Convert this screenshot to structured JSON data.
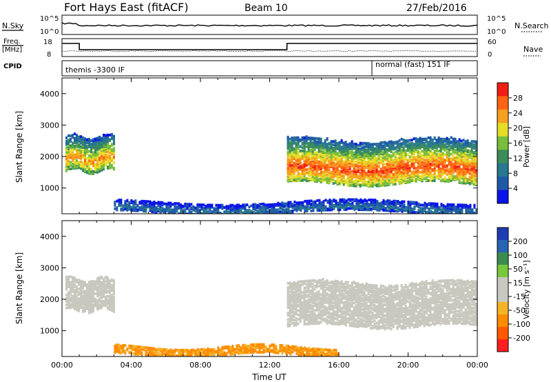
{
  "header": {
    "title": "Fort Hays East (fitACF)",
    "beam": "Beam 10",
    "date": "27/Feb/2016"
  },
  "top_panels": {
    "nsky_label": "N.Sky",
    "nsky_ticks": [
      "10^5",
      "10^0"
    ],
    "nsearch_label": "N.Search",
    "nsearch_ticks": [
      "10^5",
      "10^0"
    ],
    "freq_label_1": "Freq.",
    "freq_label_2": "[MHz]",
    "freq_ticks": [
      "18",
      "8"
    ],
    "nave_label": "Nave",
    "nave_ticks": [
      "60",
      "0"
    ],
    "cpid_label": "CPID",
    "cpid_left": "themis -3300 IF",
    "cpid_right": "normal (fast) 151 IF"
  },
  "colors": {
    "power_scale": [
      "#0a14e8",
      "#1e5aa8",
      "#287890",
      "#3c8c5a",
      "#78be3c",
      "#e6dc28",
      "#f5a01e",
      "#ff6414",
      "#f01e14"
    ],
    "velocity_scale": [
      "#ff1e1e",
      "#ff5a00",
      "#ff8c00",
      "#f5b428",
      "#c8c8be",
      "#c8c8be",
      "#78c83c",
      "#3c8c50",
      "#2864b4",
      "#1e3cb4"
    ],
    "ground_scatter": "#c8c8be"
  },
  "chart_data": [
    {
      "type": "heatmap",
      "panel": "power",
      "ylabel": "Slant Range [km]",
      "xlabel": "Time UT",
      "x_ticks": [
        "00:00",
        "04:00",
        "08:00",
        "12:00",
        "16:00",
        "20:00",
        "00:00"
      ],
      "x_range_hours": [
        0,
        24
      ],
      "y_range_km": [
        180,
        4500
      ],
      "y_ticks": [
        1000,
        2000,
        3000,
        4000
      ],
      "colorbar_label": "Power [dB]",
      "colorbar_ticks": [
        4,
        8,
        12,
        16,
        20,
        24,
        28
      ],
      "colorbar_range": [
        0,
        32
      ],
      "features": [
        {
          "name": "early echo band",
          "t_start": 0.2,
          "t_end": 3.0,
          "range_km": [
            1500,
            2600
          ],
          "peak_db": 24
        },
        {
          "name": "main echo band",
          "t_start": 13.0,
          "t_end": 24.0,
          "range_km": [
            1100,
            2500
          ],
          "peak_db": 28
        },
        {
          "name": "near-range clutter",
          "t_start": 3.0,
          "t_end": 24.0,
          "range_km": [
            180,
            500
          ],
          "peak_db": 8
        }
      ]
    },
    {
      "type": "heatmap",
      "panel": "velocity",
      "ylabel": "Slant Range [km]",
      "xlabel": "Time UT",
      "x_ticks": [
        "00:00",
        "04:00",
        "08:00",
        "12:00",
        "16:00",
        "20:00",
        "00:00"
      ],
      "x_range_hours": [
        0,
        24
      ],
      "y_range_km": [
        180,
        4500
      ],
      "y_ticks": [
        1000,
        2000,
        3000,
        4000
      ],
      "colorbar_label": "Velocity [m s⁻¹]",
      "colorbar_ticks": [
        200,
        100,
        50,
        15,
        -15,
        -50,
        -100,
        -200
      ],
      "colorbar_range": [
        -250,
        250
      ],
      "features": [
        {
          "name": "ground scatter band",
          "t_start": 13.0,
          "t_end": 24.0,
          "range_km": [
            1100,
            2500
          ],
          "velocity": 0
        },
        {
          "name": "early ground scatter",
          "t_start": 0.2,
          "t_end": 3.0,
          "range_km": [
            1600,
            2600
          ],
          "velocity": 0
        },
        {
          "name": "near-range ionospheric echoes",
          "t_start": 3.0,
          "t_end": 16.0,
          "range_km": [
            180,
            450
          ],
          "velocity": -60
        }
      ]
    }
  ]
}
